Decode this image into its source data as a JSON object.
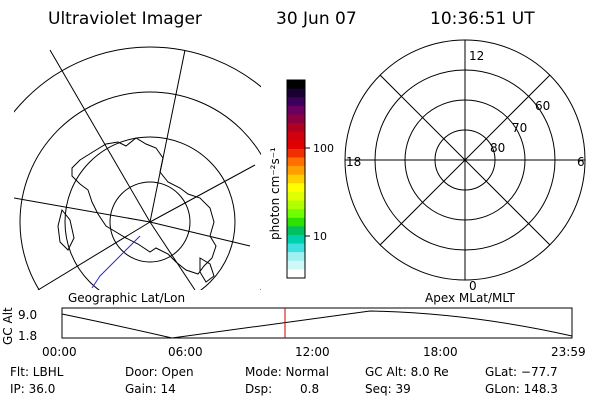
{
  "header": {
    "title": "Ultraviolet Imager",
    "date": "30 Jun 07",
    "time": "10:36:51 UT"
  },
  "colorbar": {
    "label": "photon cm⁻²s⁻¹",
    "ticks": [
      "100",
      "10"
    ],
    "colors": [
      "#000000",
      "#1a0030",
      "#3a005a",
      "#6a0060",
      "#8a0040",
      "#b00020",
      "#d00010",
      "#e00000",
      "#f03000",
      "#ff7000",
      "#ffa000",
      "#ffd000",
      "#ffff00",
      "#e0ff00",
      "#b0ff00",
      "#70ff00",
      "#30e000",
      "#00c060",
      "#00d0b0",
      "#40e0e0",
      "#a0f0f0",
      "#d0f8f8",
      "#ffffff"
    ]
  },
  "geo_panel": {
    "label": "Geographic Lat/Lon"
  },
  "mag_panel": {
    "label": "Apex MLat/MLT",
    "mlt_labels": {
      "top": "12",
      "left": "18",
      "right": "6",
      "bottom": "0"
    },
    "lat_labels": [
      "60",
      "70",
      "80"
    ]
  },
  "orbit_plot": {
    "ylabel": "GC Alt",
    "yticks": [
      "9.0",
      "1.8"
    ],
    "xticks": [
      "00:00",
      "06:00",
      "12:00",
      "18:00",
      "23:59"
    ],
    "marker_color": "#cc0000"
  },
  "footer": {
    "filter": "Flt: LBHL",
    "door": "Door: Open",
    "mode": "Mode: Normal",
    "gc_alt": "GC Alt: 8.0 Re",
    "glat": "GLat: −77.7",
    "ip": "IP: 36.0",
    "gain": "Gain: 14",
    "dsp_label": "Dsp:",
    "dsp_value": "0.8",
    "seq": "Seq: 39",
    "glon": "GLon: 148.3"
  }
}
